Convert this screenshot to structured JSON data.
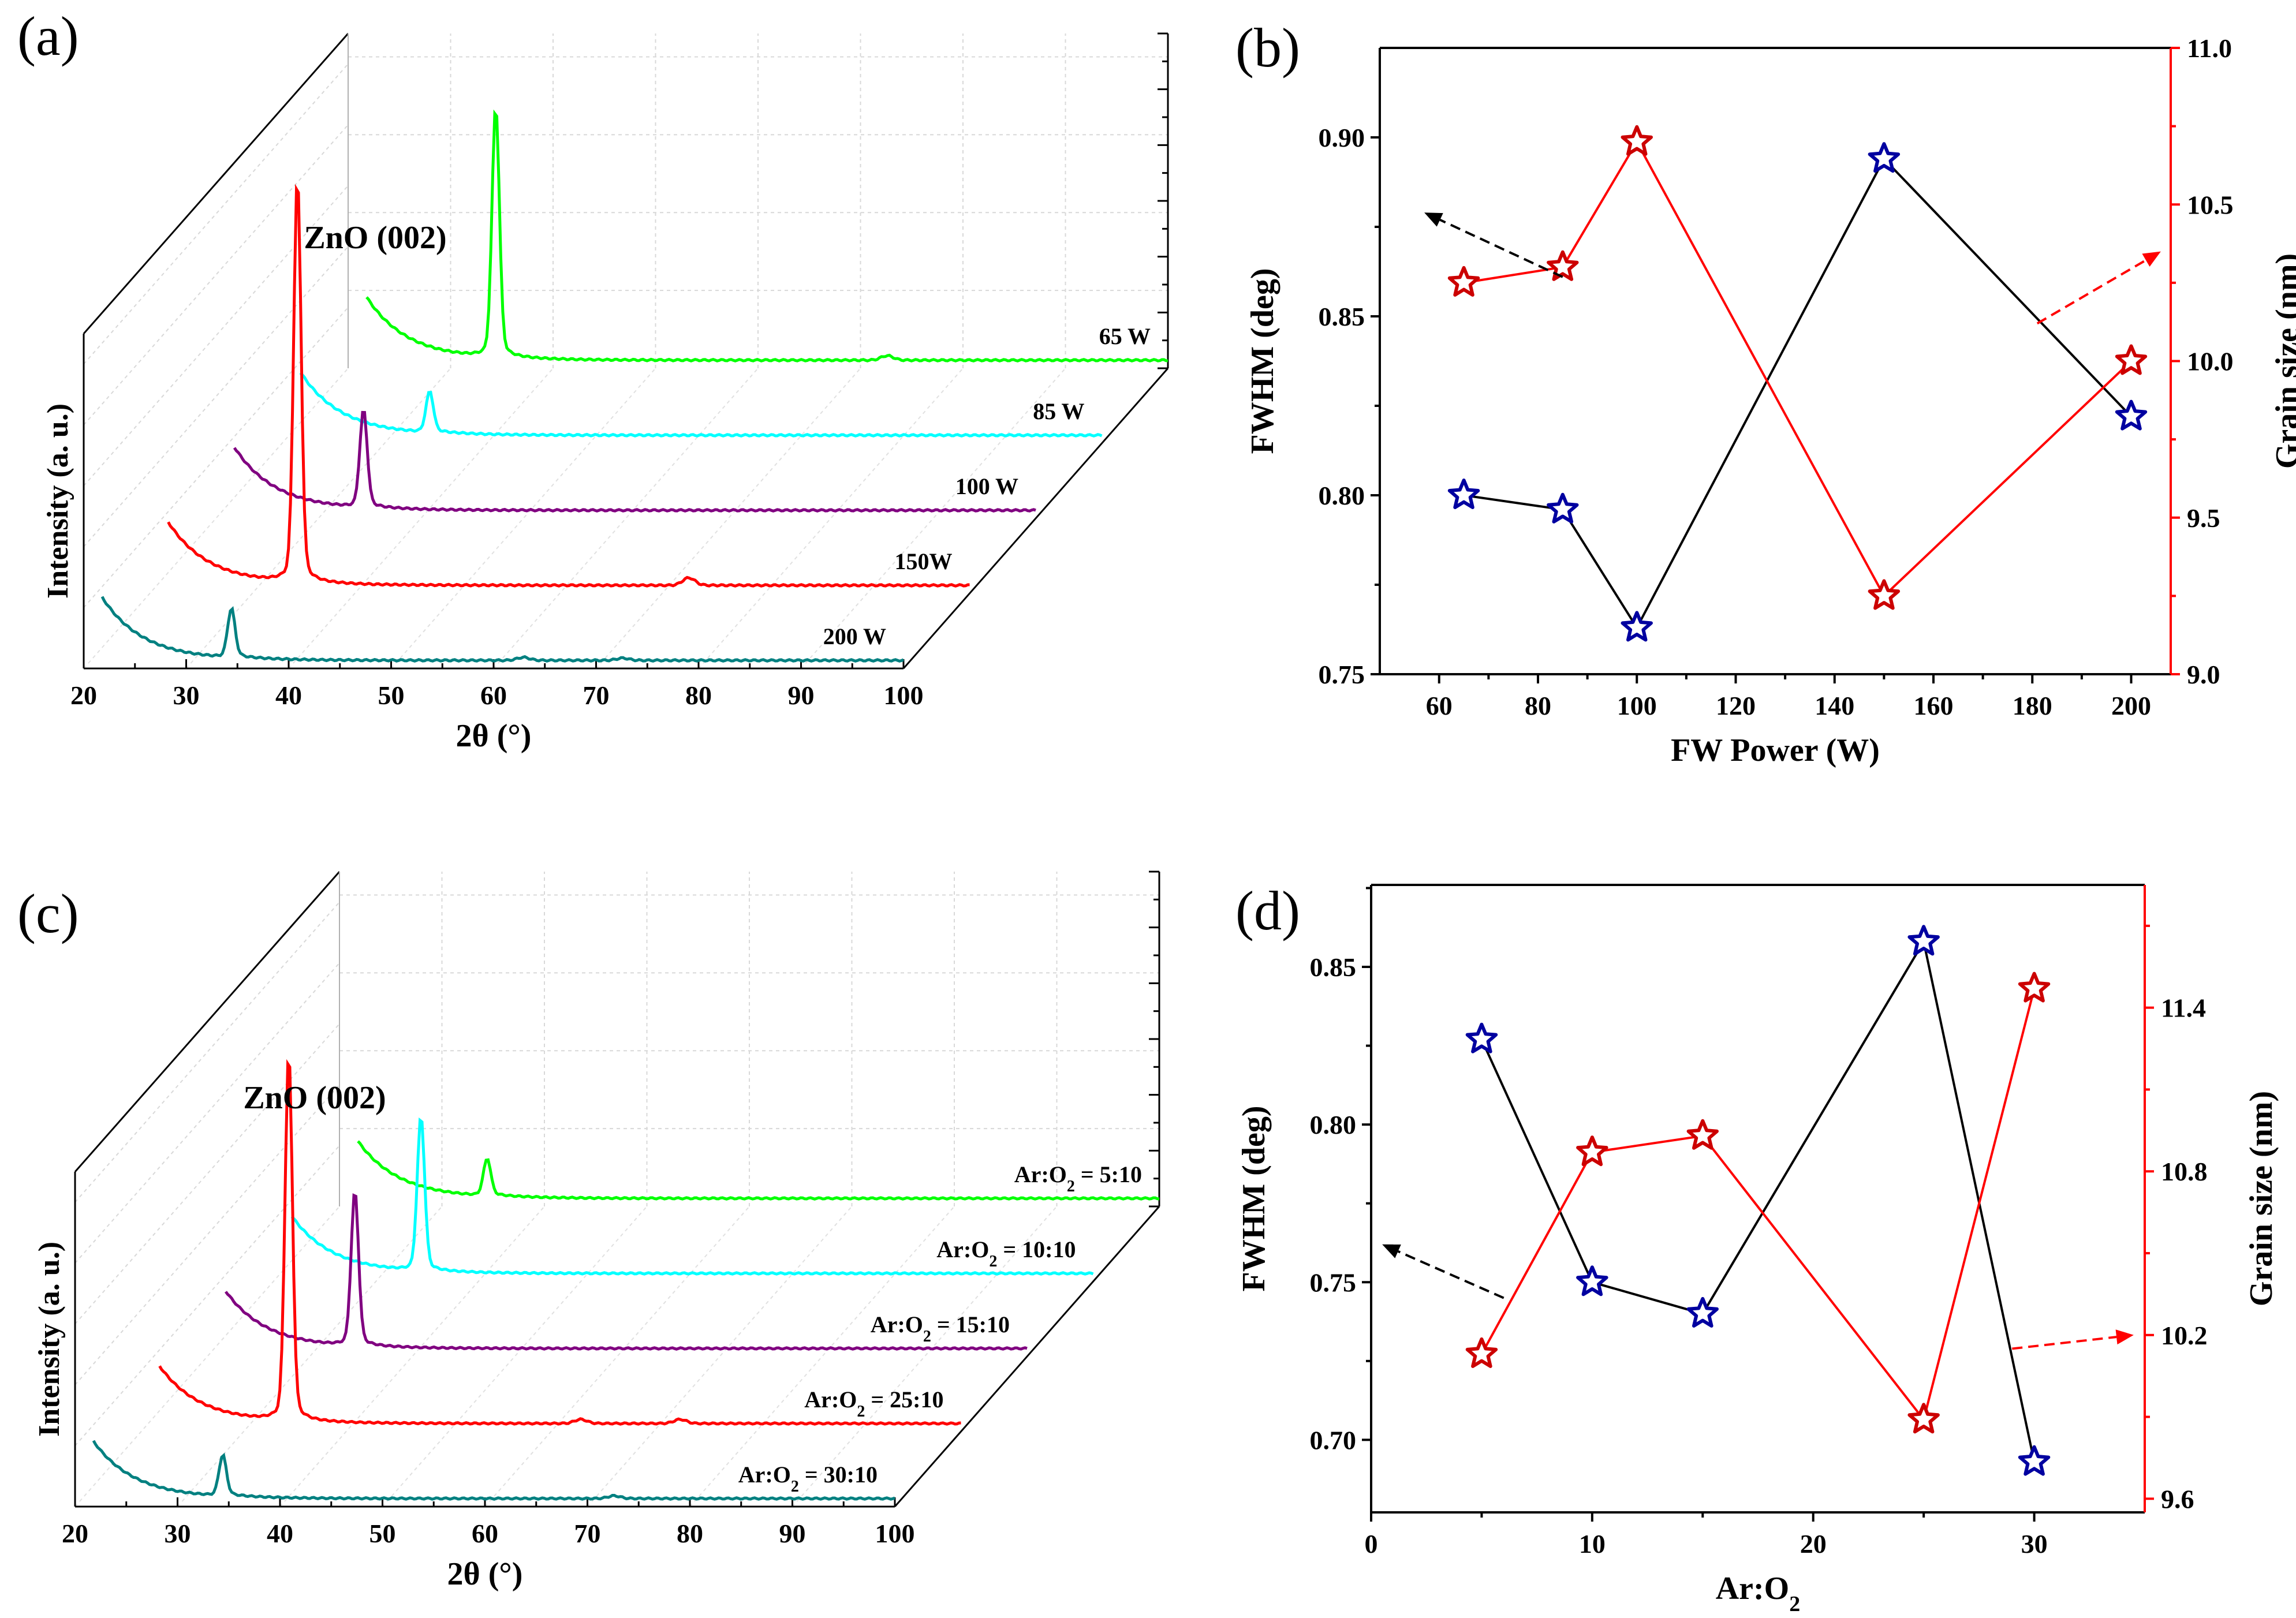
{
  "chart_data": [
    {
      "panel": "(a)",
      "type": "line",
      "style": "3d-waterfall",
      "xlabel": "2θ (°)",
      "ylabel": "Intensity (a. u.)",
      "xlim": [
        20,
        100
      ],
      "xticks": [
        "20",
        "30",
        "40",
        "50",
        "60",
        "70",
        "80",
        "90",
        "100"
      ],
      "annotation": "ZnO (002)",
      "series": [
        {
          "name": "200 W",
          "color": "#008080",
          "peak_x": 34.4,
          "peak_height": 0.12,
          "minor": [
            [
              62.9,
              0.008
            ],
            [
              72.6,
              0.006
            ]
          ]
        },
        {
          "name": "150W",
          "color": "#ff0000",
          "peak_x": 34.4,
          "peak_height": 1.0,
          "minor": [
            [
              72.6,
              0.02
            ]
          ]
        },
        {
          "name": "100 W",
          "color": "#800080",
          "peak_x": 34.4,
          "peak_height": 0.24,
          "minor": []
        },
        {
          "name": "85 W",
          "color": "#00ffff",
          "peak_x": 34.4,
          "peak_height": 0.1,
          "minor": []
        },
        {
          "name": "65 W",
          "color": "#00ff00",
          "peak_x": 34.4,
          "peak_height": 0.62,
          "minor": [
            [
              72.6,
              0.012
            ]
          ]
        }
      ]
    },
    {
      "panel": "(b)",
      "type": "line",
      "xlabel": "FW Power (W)",
      "ylabel": "FWHM (deg)",
      "y2label": "Grain size (nm)",
      "xlim": [
        48,
        208
      ],
      "ylim": [
        0.75,
        0.925
      ],
      "y2lim": [
        9.0,
        11.0
      ],
      "xticks": [
        60,
        80,
        100,
        120,
        140,
        160,
        180,
        200
      ],
      "yticks": [
        0.75,
        0.8,
        0.85,
        0.9
      ],
      "y2ticks": [
        9.0,
        9.5,
        10.0,
        10.5,
        11.0
      ],
      "ytick_labels": [
        "0.75",
        "0.80",
        "0.85",
        "0.90"
      ],
      "y2tick_labels": [
        "9.0",
        "9.5",
        "10.0",
        "10.5",
        "11.0"
      ],
      "series": [
        {
          "name": "FWHM",
          "axis": "left",
          "line_color": "#000000",
          "marker_color": "#0000a0",
          "x": [
            65,
            85,
            100,
            150,
            200
          ],
          "y": [
            0.8,
            0.796,
            0.763,
            0.894,
            0.822
          ]
        },
        {
          "name": "Grain size",
          "axis": "right",
          "line_color": "#ff0000",
          "marker_color": "#cc0000",
          "x": [
            65,
            85,
            100,
            150,
            200
          ],
          "y": [
            10.25,
            10.3,
            10.7,
            9.25,
            10.0
          ]
        }
      ],
      "arrows": [
        {
          "axis": "left",
          "from": [
            85,
            0.861
          ],
          "to": [
            57,
            0.879
          ],
          "color": "#000000"
        },
        {
          "axis": "right",
          "from": [
            181,
            10.12
          ],
          "to": [
            206,
            10.35
          ],
          "color": "#ff0000"
        }
      ]
    },
    {
      "panel": "(c)",
      "type": "line",
      "style": "3d-waterfall",
      "xlabel": "2θ (°)",
      "ylabel": "Intensity (a. u.)",
      "xlim": [
        20,
        100
      ],
      "xticks": [
        "20",
        "30",
        "40",
        "50",
        "60",
        "70",
        "80",
        "90",
        "100"
      ],
      "annotation": "ZnO (002)",
      "series": [
        {
          "name": "Ar:O2 = 30:10",
          "label_main": "Ar:O",
          "label_sub": "2",
          "label_rest": " = 30:10",
          "color": "#008080",
          "peak_x": 34.4,
          "peak_height": 0.11,
          "minor": [
            [
              72.6,
              0.008
            ]
          ]
        },
        {
          "name": "Ar:O2 = 25:10",
          "label_main": "Ar:O",
          "label_sub": "2",
          "label_rest": " = 25:10",
          "color": "#ff0000",
          "peak_x": 34.4,
          "peak_height": 1.0,
          "minor": [
            [
              62.9,
              0.012
            ],
            [
              72.6,
              0.012
            ]
          ]
        },
        {
          "name": "Ar:O2 = 15:10",
          "label_main": "Ar:O",
          "label_sub": "2",
          "label_rest": " = 15:10",
          "color": "#800080",
          "peak_x": 34.4,
          "peak_height": 0.42,
          "minor": []
        },
        {
          "name": "Ar:O2 = 10:10",
          "label_main": "Ar:O",
          "label_sub": "2",
          "label_rest": " = 10:10",
          "color": "#00ffff",
          "peak_x": 34.4,
          "peak_height": 0.42,
          "minor": []
        },
        {
          "name": "Ar:O2 = 5:10",
          "label_main": "Ar:O",
          "label_sub": "2",
          "label_rest": " = 5:10",
          "color": "#00ff00",
          "peak_x": 34.4,
          "peak_height": 0.1,
          "minor": []
        }
      ]
    },
    {
      "panel": "(d)",
      "type": "line",
      "xlabel": "Ar:O2",
      "xlabel_main": "Ar:O",
      "xlabel_sub": "2",
      "ylabel": "FWHM (deg)",
      "y2label": "Grain size (nm)",
      "xlim": [
        0,
        35
      ],
      "ylim": [
        0.677,
        0.876
      ],
      "y2lim": [
        9.55,
        11.85
      ],
      "xticks": [
        0,
        10,
        20,
        30
      ],
      "yticks": [
        0.7,
        0.75,
        0.8,
        0.85
      ],
      "y2ticks": [
        9.6,
        10.2,
        10.8,
        11.4
      ],
      "ytick_labels": [
        "0.70",
        "0.75",
        "0.80",
        "0.85"
      ],
      "y2tick_labels": [
        "9.6",
        "10.2",
        "10.8",
        "11.4"
      ],
      "series": [
        {
          "name": "FWHM",
          "axis": "left",
          "line_color": "#000000",
          "marker_color": "#0000a0",
          "x": [
            5,
            10,
            15,
            25,
            30
          ],
          "y": [
            0.827,
            0.75,
            0.74,
            0.858,
            0.693
          ]
        },
        {
          "name": "Grain size",
          "axis": "right",
          "line_color": "#ff0000",
          "marker_color": "#cc0000",
          "x": [
            5,
            10,
            15,
            25,
            30
          ],
          "y": [
            10.13,
            10.87,
            10.93,
            9.89,
            11.47
          ]
        }
      ],
      "arrows": [
        {
          "axis": "left",
          "from": [
            6,
            0.745
          ],
          "to": [
            0.5,
            0.762
          ],
          "color": "#000000"
        },
        {
          "axis": "right",
          "from": [
            29,
            10.15
          ],
          "to": [
            34.5,
            10.2
          ],
          "color": "#ff0000"
        }
      ]
    }
  ],
  "peak_annotation_positions": "above tallest peak"
}
